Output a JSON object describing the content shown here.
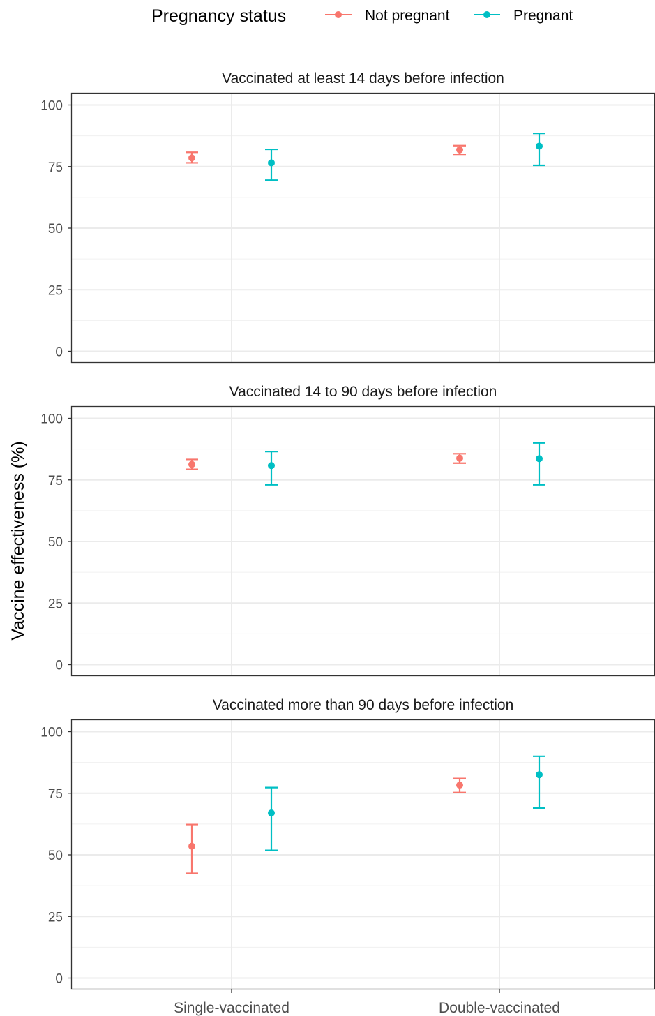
{
  "chart_data": {
    "type": "scatter",
    "subtype": "point-with-error-bars, faceted",
    "legend": {
      "title": "Pregnancy status",
      "placement": "top",
      "entries": [
        {
          "name": "Not pregnant",
          "color": "#F8766D"
        },
        {
          "name": "Pregnant",
          "color": "#00BFC4"
        }
      ]
    },
    "ylabel": "Vaccine effectiveness (%)",
    "xlabel": "",
    "categories": [
      "Single-vaccinated",
      "Double-vaccinated"
    ],
    "ylim": [
      0,
      100
    ],
    "yticks": [
      0,
      25,
      50,
      75,
      100
    ],
    "grid": true,
    "facets": [
      {
        "title": "Vaccinated at least 14 days before infection",
        "series": [
          {
            "name": "Not pregnant",
            "values": [
              78.5,
              81.8
            ],
            "lower": [
              76.5,
              80.0
            ],
            "upper": [
              80.8,
              83.5
            ]
          },
          {
            "name": "Pregnant",
            "values": [
              76.5,
              83.3
            ],
            "lower": [
              69.5,
              75.5
            ],
            "upper": [
              82.0,
              88.5
            ]
          }
        ]
      },
      {
        "title": "Vaccinated 14 to 90 days before infection",
        "series": [
          {
            "name": "Not pregnant",
            "values": [
              81.3,
              83.8
            ],
            "lower": [
              79.3,
              81.8
            ],
            "upper": [
              83.3,
              85.6
            ]
          },
          {
            "name": "Pregnant",
            "values": [
              80.8,
              83.6
            ],
            "lower": [
              73.0,
              73.0
            ],
            "upper": [
              86.5,
              90.0
            ]
          }
        ]
      },
      {
        "title": "Vaccinated more than 90 days before infection",
        "series": [
          {
            "name": "Not pregnant",
            "values": [
              53.5,
              78.3
            ],
            "lower": [
              42.5,
              75.3
            ],
            "upper": [
              62.3,
              81.0
            ]
          },
          {
            "name": "Pregnant",
            "values": [
              67.0,
              82.5
            ],
            "lower": [
              51.8,
              69.0
            ],
            "upper": [
              77.3,
              90.0
            ]
          }
        ]
      }
    ]
  }
}
